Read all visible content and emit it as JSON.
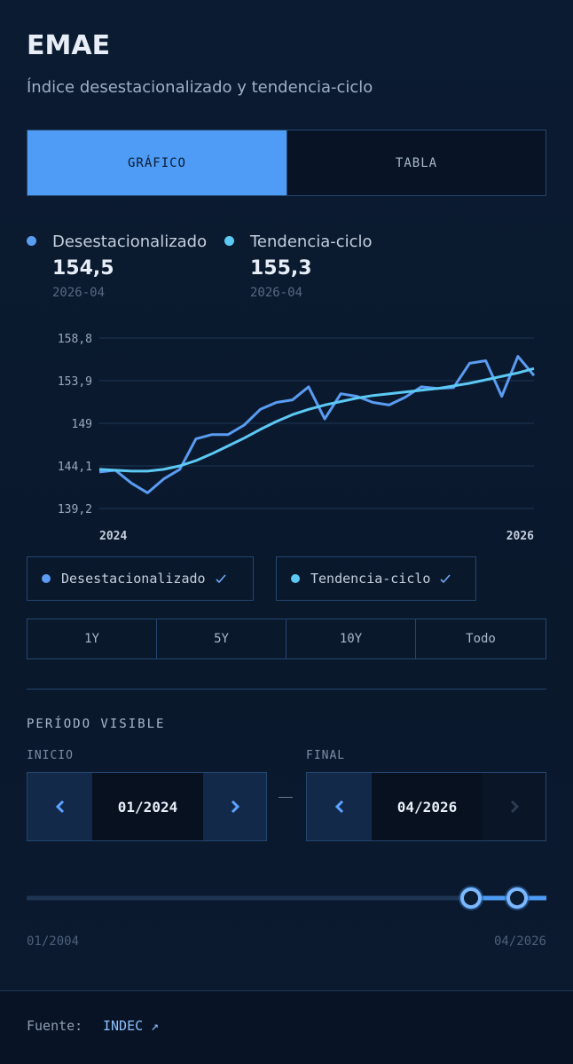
{
  "header": {
    "title": "EMAE",
    "subtitle": "Índice desestacionalizado y tendencia-ciclo"
  },
  "tabs": [
    "GRÁFICO",
    "TABLA"
  ],
  "summary": [
    {
      "value": "154,5",
      "date": "2026-04"
    },
    {
      "value": "155,3",
      "date": "2026-04"
    }
  ],
  "chart_data": {
    "type": "line",
    "categories": [
      "2024",
      null,
      null,
      null,
      null,
      null,
      null,
      null,
      null,
      null,
      null,
      null,
      null,
      null,
      null,
      null,
      null,
      null,
      null,
      null,
      null,
      null,
      null,
      null,
      null,
      null,
      null,
      "2026"
    ],
    "series": [
      {
        "name": "Desestacionalizado",
        "color": "#5a9cf2",
        "values": [
          143.4,
          143.6,
          142.1,
          141.0,
          142.6,
          143.7,
          147.2,
          147.7,
          147.7,
          148.8,
          150.6,
          151.4,
          151.7,
          153.2,
          149.5,
          152.4,
          152.1,
          151.4,
          151.1,
          152.0,
          153.2,
          153.0,
          153.1,
          155.9,
          156.2,
          152.1,
          156.7,
          154.5
        ]
      },
      {
        "name": "Tendencia-ciclo",
        "color": "#5cc9f5",
        "values": [
          143.7,
          143.6,
          143.5,
          143.5,
          143.7,
          144.1,
          144.7,
          145.5,
          146.4,
          147.3,
          148.3,
          149.2,
          150.0,
          150.6,
          151.1,
          151.5,
          151.9,
          152.2,
          152.4,
          152.6,
          152.8,
          153.0,
          153.3,
          153.6,
          154.0,
          154.4,
          154.8,
          155.3
        ]
      }
    ],
    "ylim": [
      139.2,
      158.8
    ],
    "yticks": [
      {
        "value": 139.2,
        "label": "139,2"
      },
      {
        "value": 144.1,
        "label": "144,1"
      },
      149,
      {
        "value": 153.9,
        "label": "153,9"
      },
      {
        "value": 158.8,
        "label": "158,8"
      }
    ],
    "grid": true
  },
  "ranges": [
    "1Y",
    "5Y",
    "10Y",
    "Todo"
  ],
  "period": {
    "title": "PERÍODO VISIBLE",
    "start": {
      "label": "INICIO",
      "value": "01/2024"
    },
    "end": {
      "label": "FINAL",
      "value": "04/2026"
    },
    "min": "01/2004",
    "max": "04/2026"
  },
  "footer": {
    "label": "Fuente:",
    "link": "INDEC ↗"
  }
}
